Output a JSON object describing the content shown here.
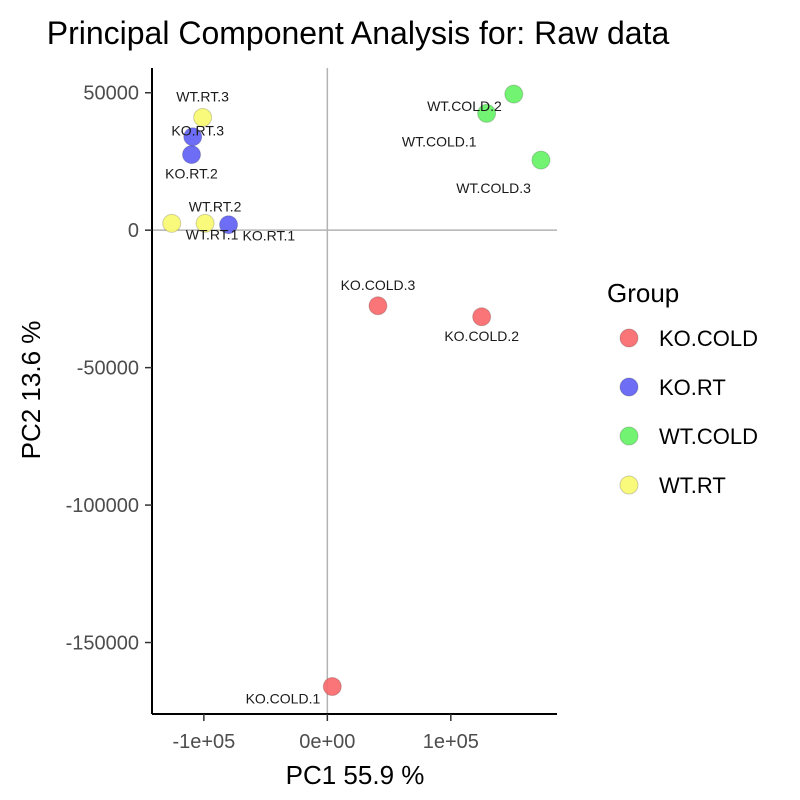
{
  "chart_data": {
    "type": "scatter",
    "title": "Principal Component Analysis for:  Raw data",
    "xlabel": "PC1 55.9 %",
    "ylabel": "PC2 13.6 %",
    "xlim": [
      -142000,
      186000
    ],
    "ylim": [
      -176000,
      59000
    ],
    "xticks": [
      -100000,
      0,
      100000
    ],
    "xtick_labels": [
      "-1e+05",
      "0e+00",
      "1e+05"
    ],
    "yticks": [
      50000,
      0,
      -50000,
      -100000,
      -150000
    ],
    "ytick_labels": [
      "50000",
      "0",
      "-50000",
      "-100000",
      "-150000"
    ],
    "reference_lines": {
      "x": 0,
      "y": 0
    },
    "legend": {
      "title": "Group",
      "position": "right",
      "entries": [
        {
          "name": "KO.COLD",
          "color": "#f8696b"
        },
        {
          "name": "KO.RT",
          "color": "#6161f5"
        },
        {
          "name": "WT.COLD",
          "color": "#66f266"
        },
        {
          "name": "WT.RT",
          "color": "#f9f871"
        }
      ]
    },
    "series": [
      {
        "name": "KO.COLD",
        "points": [
          {
            "label": "KO.COLD.1",
            "x": 4000,
            "y": -166000,
            "label_pos": "left"
          },
          {
            "label": "KO.COLD.2",
            "x": 125000,
            "y": -31500,
            "label_pos": "below"
          },
          {
            "label": "KO.COLD.3",
            "x": 41000,
            "y": -27500,
            "label_pos": "above"
          }
        ]
      },
      {
        "name": "KO.RT",
        "points": [
          {
            "label": "KO.RT.1",
            "x": -80000,
            "y": 2000,
            "label_pos": "below-right"
          },
          {
            "label": "KO.RT.2",
            "x": -110000,
            "y": 27500,
            "label_pos": "below"
          },
          {
            "label": "KO.RT.3",
            "x": -109000,
            "y": 34000,
            "label_pos": "over"
          }
        ]
      },
      {
        "name": "WT.COLD",
        "points": [
          {
            "label": "WT.COLD.1",
            "x": 129000,
            "y": 42500,
            "label_pos": "below-left"
          },
          {
            "label": "WT.COLD.2",
            "x": 151000,
            "y": 49500,
            "label_pos": "left"
          },
          {
            "label": "WT.COLD.3",
            "x": 173000,
            "y": 25500,
            "label_pos": "below-left"
          }
        ]
      },
      {
        "name": "WT.RT",
        "points": [
          {
            "label": "WT.RT.1",
            "x": -126000,
            "y": 2500,
            "label_pos": "below-right"
          },
          {
            "label": "WT.RT.2",
            "x": -99000,
            "y": 2500,
            "label_pos": "above-right"
          },
          {
            "label": "WT.RT.3",
            "x": -101000,
            "y": 41000,
            "label_pos": "above"
          }
        ]
      }
    ]
  }
}
